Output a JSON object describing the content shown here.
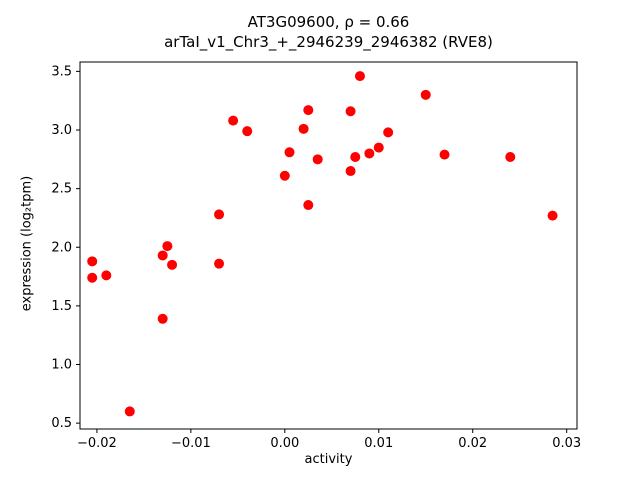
{
  "chart_data": {
    "type": "scatter",
    "title": "AT3G09600, ρ = 0.66",
    "subtitle": "arTaI_v1_Chr3_+_2946239_2946382 (RVE8)",
    "xlabel": "activity",
    "ylabel": "expression (log₂tpm)",
    "xlim": [
      -0.0218,
      0.0311
    ],
    "ylim": [
      0.45,
      3.58
    ],
    "xticks": [
      -0.02,
      -0.01,
      0.0,
      0.01,
      0.02,
      0.03
    ],
    "xtick_labels": [
      "−0.02",
      "−0.01",
      "0.00",
      "0.01",
      "0.02",
      "0.03"
    ],
    "yticks": [
      0.5,
      1.0,
      1.5,
      2.0,
      2.5,
      3.0,
      3.5
    ],
    "ytick_labels": [
      "0.5",
      "1.0",
      "1.5",
      "2.0",
      "2.5",
      "3.0",
      "3.5"
    ],
    "marker_color": "#ff0000",
    "legend": "none",
    "grid": false,
    "points": [
      [
        -0.0205,
        1.88
      ],
      [
        -0.0205,
        1.74
      ],
      [
        -0.019,
        1.76
      ],
      [
        -0.0165,
        0.6
      ],
      [
        -0.013,
        1.93
      ],
      [
        -0.013,
        1.39
      ],
      [
        -0.0125,
        2.01
      ],
      [
        -0.012,
        1.85
      ],
      [
        -0.007,
        2.28
      ],
      [
        -0.007,
        1.86
      ],
      [
        -0.0055,
        3.08
      ],
      [
        -0.004,
        2.99
      ],
      [
        0.0,
        2.61
      ],
      [
        0.0005,
        2.81
      ],
      [
        0.002,
        3.01
      ],
      [
        0.0025,
        3.17
      ],
      [
        0.0025,
        2.36
      ],
      [
        0.0035,
        2.75
      ],
      [
        0.007,
        3.16
      ],
      [
        0.007,
        2.65
      ],
      [
        0.0075,
        2.77
      ],
      [
        0.008,
        3.46
      ],
      [
        0.009,
        2.8
      ],
      [
        0.01,
        2.85
      ],
      [
        0.011,
        2.98
      ],
      [
        0.015,
        3.3
      ],
      [
        0.017,
        2.79
      ],
      [
        0.024,
        2.77
      ],
      [
        0.0285,
        2.27
      ]
    ]
  }
}
